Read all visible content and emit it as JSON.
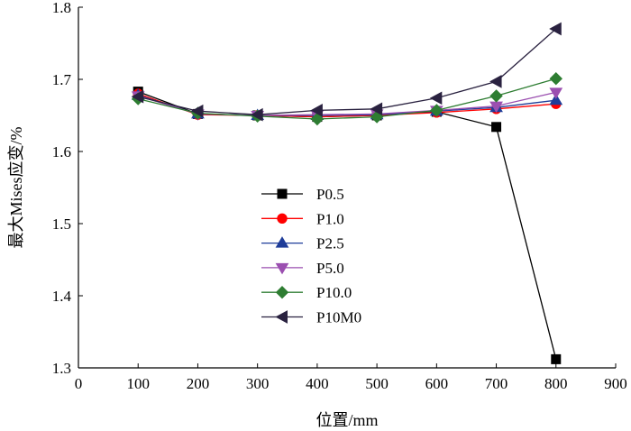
{
  "chart_data": {
    "type": "line",
    "title": "",
    "xlabel": "位置/mm",
    "ylabel": "最大Mises应变/%",
    "xlim": [
      0,
      900
    ],
    "ylim": [
      1.3,
      1.8
    ],
    "x_ticks": [
      0,
      100,
      200,
      300,
      400,
      500,
      600,
      700,
      800,
      900
    ],
    "y_ticks": [
      1.3,
      1.4,
      1.5,
      1.6,
      1.7,
      1.8
    ],
    "x_tick_labels": [
      "0",
      "100",
      "200",
      "300",
      "400",
      "500",
      "600",
      "700",
      "800",
      "900"
    ],
    "y_tick_labels": [
      "1.3",
      "1.4",
      "1.5",
      "1.6",
      "1.7",
      "1.8"
    ],
    "grid": false,
    "legend_position": "center-left",
    "x": [
      100,
      200,
      300,
      400,
      500,
      600,
      700,
      800
    ],
    "series": [
      {
        "name": "P0.5",
        "color": "#000000",
        "marker": "square",
        "values": [
          1.683,
          1.652,
          1.65,
          1.648,
          1.65,
          1.655,
          1.634,
          1.312
        ]
      },
      {
        "name": "P1.0",
        "color": "#ff0000",
        "marker": "circle",
        "values": [
          1.68,
          1.651,
          1.65,
          1.648,
          1.65,
          1.654,
          1.659,
          1.666
        ]
      },
      {
        "name": "P2.5",
        "color": "#1f3d99",
        "marker": "triangle-up",
        "values": [
          1.678,
          1.652,
          1.65,
          1.65,
          1.651,
          1.656,
          1.661,
          1.671
        ]
      },
      {
        "name": "P5.0",
        "color": "#9b4fb0",
        "marker": "triangle-down",
        "values": [
          1.677,
          1.652,
          1.65,
          1.651,
          1.652,
          1.657,
          1.663,
          1.682
        ]
      },
      {
        "name": "P10.0",
        "color": "#2e7d32",
        "marker": "diamond",
        "values": [
          1.673,
          1.653,
          1.649,
          1.645,
          1.648,
          1.657,
          1.677,
          1.701
        ]
      },
      {
        "name": "P10M0",
        "color": "#2a2240",
        "marker": "triangle-left",
        "values": [
          1.676,
          1.656,
          1.651,
          1.657,
          1.659,
          1.674,
          1.697,
          1.77
        ]
      }
    ]
  }
}
